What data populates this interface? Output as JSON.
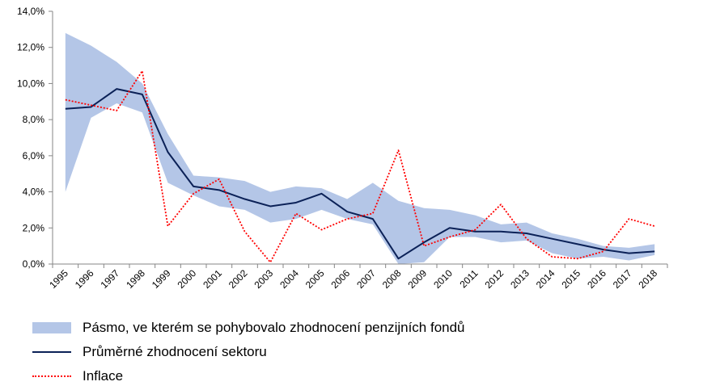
{
  "chart_data": {
    "type": "line",
    "categories": [
      "1995",
      "1996",
      "1997",
      "1998",
      "1999",
      "2000",
      "2001",
      "2002",
      "2003",
      "2004",
      "2005",
      "2006",
      "2007",
      "2008",
      "2009",
      "2010",
      "2011",
      "2012",
      "2013",
      "2014",
      "2015",
      "2016",
      "2017",
      "2018"
    ],
    "ylim": [
      0,
      14
    ],
    "yticks": [
      0,
      2,
      4,
      6,
      8,
      10,
      12,
      14
    ],
    "ytick_labels": [
      "0,0%",
      "2,0%",
      "4,0%",
      "6,0%",
      "8,0%",
      "10,0%",
      "12,0%",
      "14,0%"
    ],
    "grid": false,
    "legend_position": "bottom",
    "band": {
      "name": "Pásmo, ve kterém se pohybovalo zhodnocení penzijních fondů",
      "color": "#b4c6e7",
      "upper": [
        12.8,
        12.1,
        11.2,
        10.0,
        7.2,
        4.9,
        4.8,
        4.6,
        4.0,
        4.3,
        4.2,
        3.6,
        4.5,
        3.5,
        3.1,
        3.0,
        2.7,
        2.2,
        2.3,
        1.7,
        1.4,
        1.0,
        0.9,
        1.1
      ],
      "lower": [
        4.0,
        8.1,
        8.9,
        8.4,
        4.5,
        3.8,
        3.2,
        3.0,
        2.3,
        2.5,
        3.0,
        2.5,
        2.2,
        0.0,
        0.1,
        1.5,
        1.5,
        1.2,
        1.3,
        0.6,
        0.3,
        0.4,
        0.2,
        0.5
      ]
    },
    "series": [
      {
        "name": "Průměrné zhodnocení sektoru",
        "color": "#0b2157",
        "style": "solid",
        "values": [
          8.6,
          8.7,
          9.7,
          9.4,
          6.2,
          4.3,
          4.1,
          3.6,
          3.2,
          3.4,
          3.9,
          2.9,
          2.5,
          0.3,
          1.2,
          2.0,
          1.8,
          1.8,
          1.7,
          1.4,
          1.1,
          0.8,
          0.6,
          0.7
        ]
      },
      {
        "name": "Inflace",
        "color": "#ff0000",
        "style": "dotted",
        "values": [
          9.1,
          8.8,
          8.5,
          10.7,
          2.1,
          3.9,
          4.7,
          1.8,
          0.1,
          2.8,
          1.9,
          2.5,
          2.8,
          6.3,
          1.0,
          1.5,
          1.9,
          3.3,
          1.4,
          0.4,
          0.3,
          0.7,
          2.5,
          2.1
        ]
      }
    ]
  }
}
